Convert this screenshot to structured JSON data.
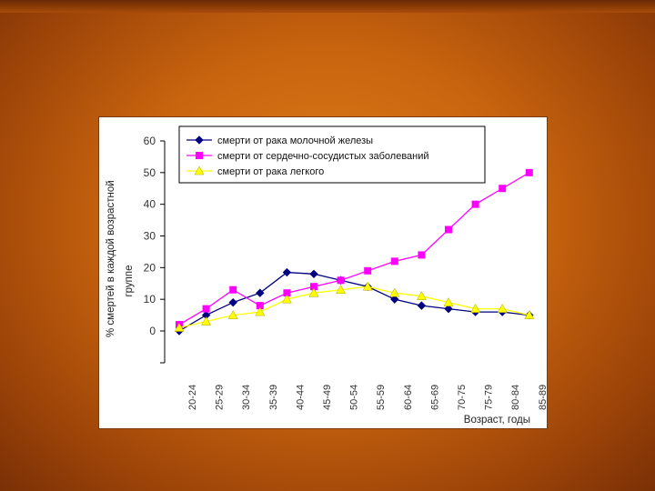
{
  "chart_data": {
    "type": "line",
    "title": "",
    "ylabel_line1": "% смертей в каждой возрастной",
    "ylabel_line2": "группе",
    "xlabel": "Возраст, годы",
    "ylim": [
      0,
      60
    ],
    "yticks": [
      0,
      10,
      20,
      30,
      40,
      50,
      60
    ],
    "categories": [
      "20-24",
      "25-29",
      "30-34",
      "35-39",
      "40-44",
      "45-49",
      "50-54",
      "55-59",
      "60-64",
      "65-69",
      "70-75",
      "75-79",
      "80-84",
      "85-89"
    ],
    "series": [
      {
        "name": "смерти от рака молочной железы",
        "color": "#000080",
        "marker": "diamond",
        "values": [
          0,
          5,
          9,
          12,
          18.5,
          18,
          16,
          14,
          10,
          8,
          7,
          6,
          6,
          5
        ]
      },
      {
        "name": "смерти от сердечно-сосудистых заболеваний",
        "color": "#ff00ff",
        "marker": "square",
        "values": [
          2,
          7,
          13,
          8,
          12,
          14,
          16,
          19,
          22,
          24,
          32,
          40,
          45,
          50
        ]
      },
      {
        "name": "смерти от рака легкого",
        "color": "#ffff00",
        "marker": "triangle",
        "values": [
          1,
          3,
          5,
          6,
          10,
          12,
          13,
          14,
          12,
          11,
          9,
          7,
          7,
          5
        ]
      }
    ],
    "legend": "top-left-inside"
  }
}
